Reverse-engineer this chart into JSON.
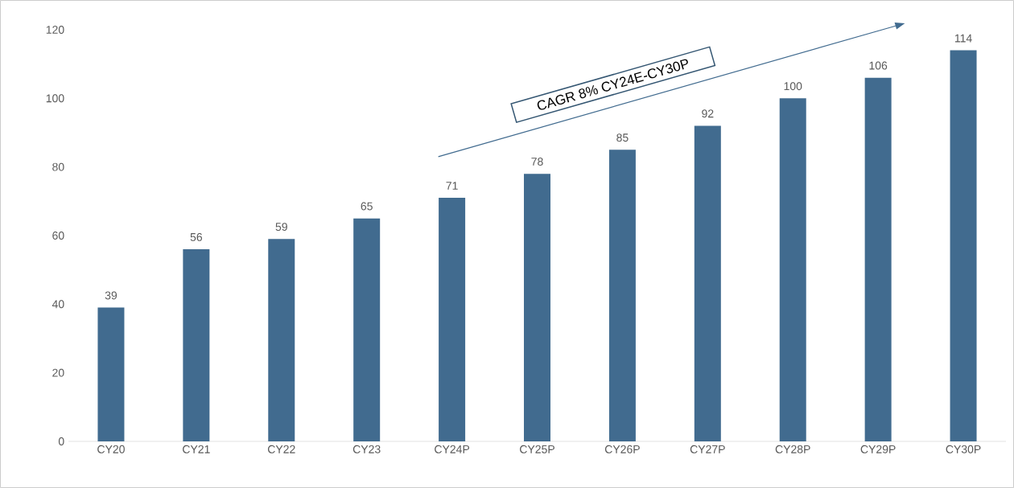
{
  "chart_data": {
    "type": "bar",
    "categories": [
      "CY20",
      "CY21",
      "CY22",
      "CY23",
      "CY24P",
      "CY25P",
      "CY26P",
      "CY27P",
      "CY28P",
      "CY29P",
      "CY30P"
    ],
    "values": [
      39,
      56,
      59,
      65,
      71,
      78,
      85,
      92,
      100,
      106,
      114
    ],
    "color": "#416b8f",
    "ylim": [
      0,
      120
    ],
    "yticks": [
      0,
      20,
      40,
      60,
      80,
      100,
      120
    ],
    "data_labels": true,
    "grid": false,
    "annotations": [
      "CAGR 8% CY24E-CY30P"
    ]
  }
}
